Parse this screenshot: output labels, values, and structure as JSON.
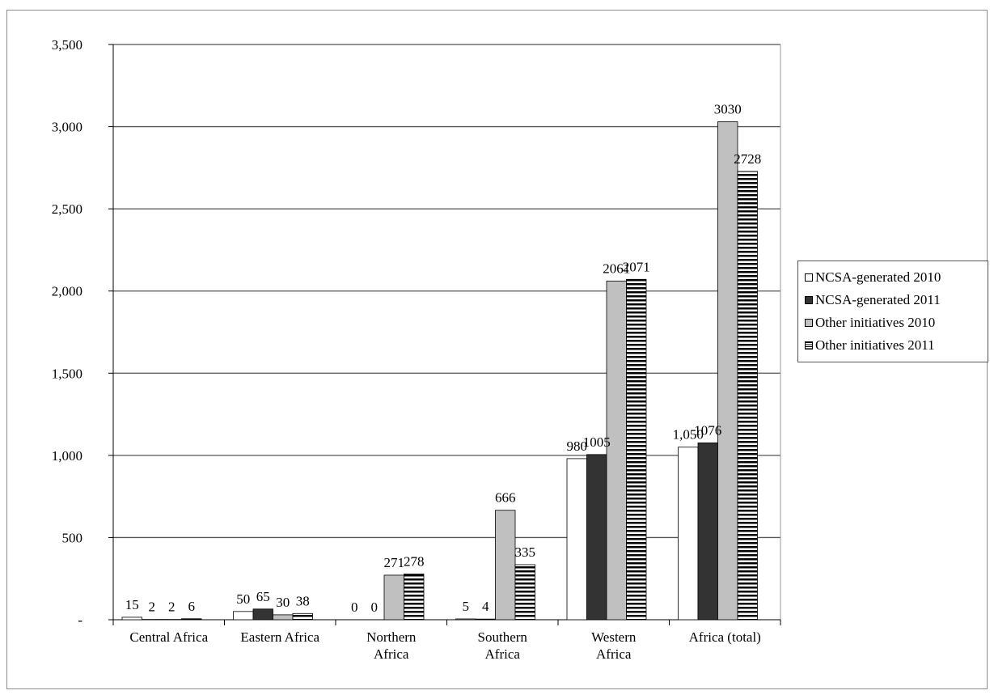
{
  "chart_data": {
    "type": "bar",
    "categories": [
      "Central Africa",
      "Eastern Africa",
      "Northern Africa",
      "Southern Africa",
      "Western Africa",
      "Africa (total)"
    ],
    "category_lines": [
      [
        "Central Africa"
      ],
      [
        "Eastern Africa"
      ],
      [
        "Northern",
        "Africa"
      ],
      [
        "Southern",
        "Africa"
      ],
      [
        "Western",
        "Africa"
      ],
      [
        "Africa (total)"
      ]
    ],
    "series": [
      {
        "name": "NCSA-generated 2010",
        "values": [
          15,
          50,
          0,
          5,
          980,
          1050
        ],
        "labels": [
          "15",
          "50",
          "0",
          "5",
          "980",
          "1,050"
        ],
        "fill": "#ffffff",
        "pattern": "solid"
      },
      {
        "name": "NCSA-generated 2011",
        "values": [
          2,
          65,
          0,
          4,
          1005,
          1076
        ],
        "labels": [
          "2",
          "65",
          "0",
          "4",
          "1005",
          "1076"
        ],
        "fill": "#333333",
        "pattern": "solid"
      },
      {
        "name": "Other initiatives 2010",
        "values": [
          2,
          30,
          271,
          666,
          2061,
          3030
        ],
        "labels": [
          "2",
          "30",
          "271",
          "666",
          "2061",
          "3030"
        ],
        "fill": "#c0c0c0",
        "pattern": "solid"
      },
      {
        "name": "Other initiatives 2011",
        "values": [
          6,
          38,
          278,
          335,
          2071,
          2728
        ],
        "labels": [
          "6",
          "38",
          "278",
          "335",
          "2071",
          "2728"
        ],
        "fill": "#ffffff",
        "pattern": "horizontal-stripes"
      }
    ],
    "ylim": [
      0,
      3500
    ],
    "yticks": [
      0,
      500,
      1000,
      1500,
      2000,
      2500,
      3000,
      3500
    ],
    "ytick_labels": [
      "-",
      "500",
      "1,000",
      "1,500",
      "2,000",
      "2,500",
      "3,000",
      "3,500"
    ],
    "grid": true,
    "legend_position": "right",
    "title": "",
    "xlabel": "",
    "ylabel": ""
  }
}
